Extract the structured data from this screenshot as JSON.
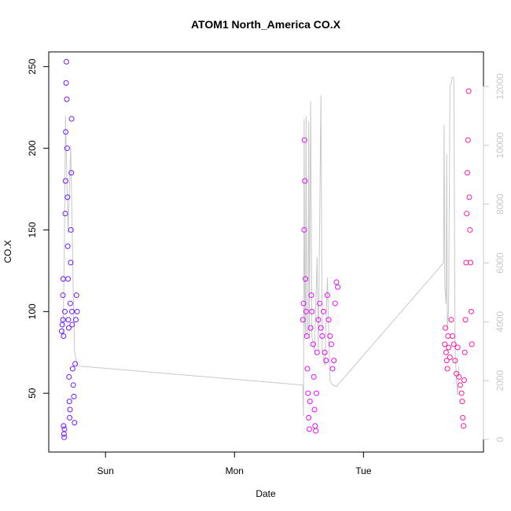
{
  "chart_data": {
    "type": "scatter",
    "title": "ATOM1 North_America CO.X",
    "x_label": "Date",
    "y_label": "CO.X",
    "xlim": [
      0.56,
      3.93
    ],
    "xticks": [
      {
        "value": 1,
        "label": "Sun"
      },
      {
        "value": 2,
        "label": "Mon"
      },
      {
        "value": 3,
        "label": "Tue"
      }
    ],
    "ylim": [
      14,
      259
    ],
    "yticks": [
      50,
      100,
      150,
      200,
      250
    ],
    "y2lim": [
      -428,
      13176
    ],
    "y2ticks": [
      0,
      2000,
      4000,
      6000,
      8000,
      10000,
      12000
    ],
    "y2_color": "#c8c8c8",
    "series": [
      {
        "color": "#6f1aff",
        "x": [
          0.66,
          0.665,
          0.67,
          0.67,
          0.672,
          0.675,
          0.675,
          0.678,
          0.68,
          0.682,
          0.685,
          0.688,
          0.69,
          0.692,
          0.695,
          0.697,
          0.7,
          0.702,
          0.705,
          0.707,
          0.71,
          0.712,
          0.715,
          0.717,
          0.72,
          0.722,
          0.725,
          0.727,
          0.73,
          0.732,
          0.735,
          0.737,
          0.74,
          0.742,
          0.745,
          0.75,
          0.755,
          0.76,
          0.765,
          0.77,
          0.775,
          0.78
        ],
        "values": [
          88,
          92,
          95,
          110,
          120,
          85,
          30,
          25,
          23,
          28,
          100,
          160,
          180,
          210,
          240,
          253,
          230,
          200,
          170,
          140,
          120,
          95,
          90,
          60,
          45,
          35,
          40,
          105,
          130,
          150,
          185,
          218,
          100,
          92,
          65,
          55,
          48,
          32,
          68,
          95,
          110,
          100
        ]
      },
      {
        "color": "#e60cff",
        "x": [
          2.53,
          2.535,
          2.54,
          2.542,
          2.545,
          2.55,
          2.555,
          2.56,
          2.565,
          2.57,
          2.575,
          2.58,
          2.585,
          2.59,
          2.595,
          2.6,
          2.61,
          2.615,
          2.62,
          2.625,
          2.63,
          2.635,
          2.64,
          2.65,
          2.66,
          2.67,
          2.68,
          2.69,
          2.7,
          2.71,
          2.72,
          2.73,
          2.74,
          2.75,
          2.76,
          2.77,
          2.78,
          2.79,
          2.8
        ],
        "values": [
          95,
          105,
          150,
          205,
          180,
          120,
          100,
          85,
          65,
          50,
          35,
          28,
          45,
          90,
          110,
          100,
          80,
          60,
          40,
          30,
          27,
          50,
          75,
          95,
          105,
          90,
          85,
          100,
          75,
          70,
          110,
          95,
          85,
          80,
          65,
          70,
          105,
          118,
          115
        ]
      },
      {
        "color": "#ff1aa0",
        "x": [
          3.63,
          3.635,
          3.64,
          3.645,
          3.65,
          3.655,
          3.66,
          3.67,
          3.68,
          3.69,
          3.7,
          3.71,
          3.72,
          3.73,
          3.74,
          3.75,
          3.76,
          3.765,
          3.77,
          3.775,
          3.78,
          3.785,
          3.79,
          3.795,
          3.8,
          3.805,
          3.81,
          3.815,
          3.82,
          3.825,
          3.83,
          3.835,
          3.84
        ],
        "values": [
          80,
          90,
          75,
          70,
          65,
          85,
          78,
          72,
          95,
          85,
          80,
          70,
          62,
          78,
          60,
          55,
          50,
          45,
          35,
          30,
          58,
          75,
          95,
          130,
          160,
          185,
          205,
          235,
          170,
          150,
          130,
          100,
          80
        ]
      },
      {
        "color": "#c8c8c8",
        "type": "line",
        "axis": "y2",
        "x": [
          0.67,
          0.68,
          0.69,
          0.7,
          0.71,
          0.73,
          0.75,
          0.76,
          0.78,
          2.53,
          2.535,
          2.54,
          2.545,
          2.55,
          2.555,
          2.56,
          2.57,
          2.575,
          2.58,
          2.59,
          2.6,
          2.62,
          2.64,
          2.65,
          2.67,
          2.68,
          2.7,
          2.72,
          2.74,
          2.76,
          2.79,
          3.62,
          3.625,
          3.63,
          3.64,
          3.645,
          3.65,
          3.66,
          3.67,
          3.68,
          3.685,
          3.7,
          3.71,
          3.72,
          3.73,
          3.74
        ],
        "values": [
          3500,
          6000,
          11000,
          9000,
          7000,
          10000,
          5000,
          3000,
          2500,
          1850,
          800,
          10900,
          4000,
          3500,
          11000,
          3500,
          3800,
          10800,
          3400,
          11500,
          3500,
          3000,
          6200,
          3000,
          11700,
          3000,
          2500,
          5500,
          2000,
          1850,
          1800,
          6000,
          10700,
          5200,
          4600,
          9700,
          3700,
          4500,
          12000,
          12100,
          12300,
          12300,
          3000,
          2000,
          1500,
          2500
        ]
      }
    ]
  }
}
